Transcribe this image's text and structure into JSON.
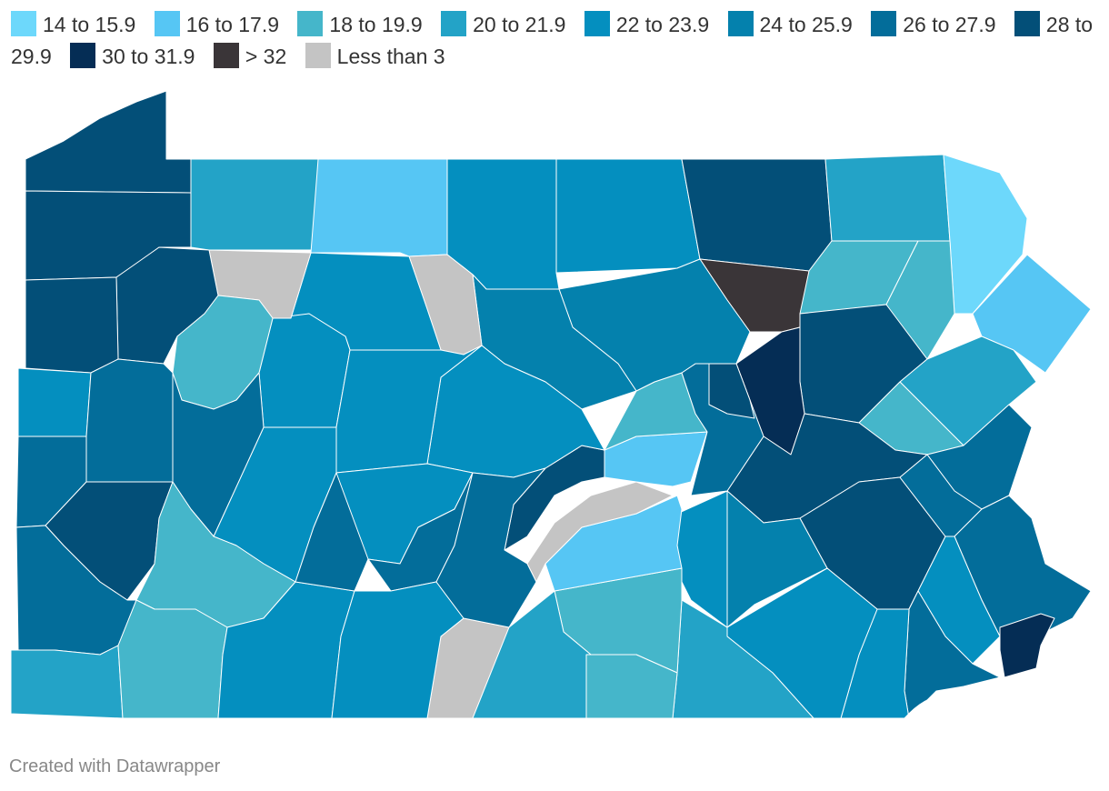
{
  "legend": [
    {
      "label": "14 to 15.9",
      "color": "#6dd8fb"
    },
    {
      "label": "16 to 17.9",
      "color": "#56c6f4"
    },
    {
      "label": "18 to 19.9",
      "color": "#45b6ca"
    },
    {
      "label": "20 to 21.9",
      "color": "#23a3c7"
    },
    {
      "label": "22 to 23.9",
      "color": "#048fbf"
    },
    {
      "label": "24 to 25.9",
      "color": "#0481ad"
    },
    {
      "label": "26 to 27.9",
      "color": "#036d9a"
    },
    {
      "label": "28 to 29.9",
      "color": "#034f78"
    },
    {
      "label": "30 to 31.9",
      "color": "#052d55"
    },
    {
      "label": "> 32",
      "color": "#3a3538"
    },
    {
      "label": "Less than 3",
      "color": "#c4c4c4"
    }
  ],
  "footer": "Created with Datawrapper"
}
